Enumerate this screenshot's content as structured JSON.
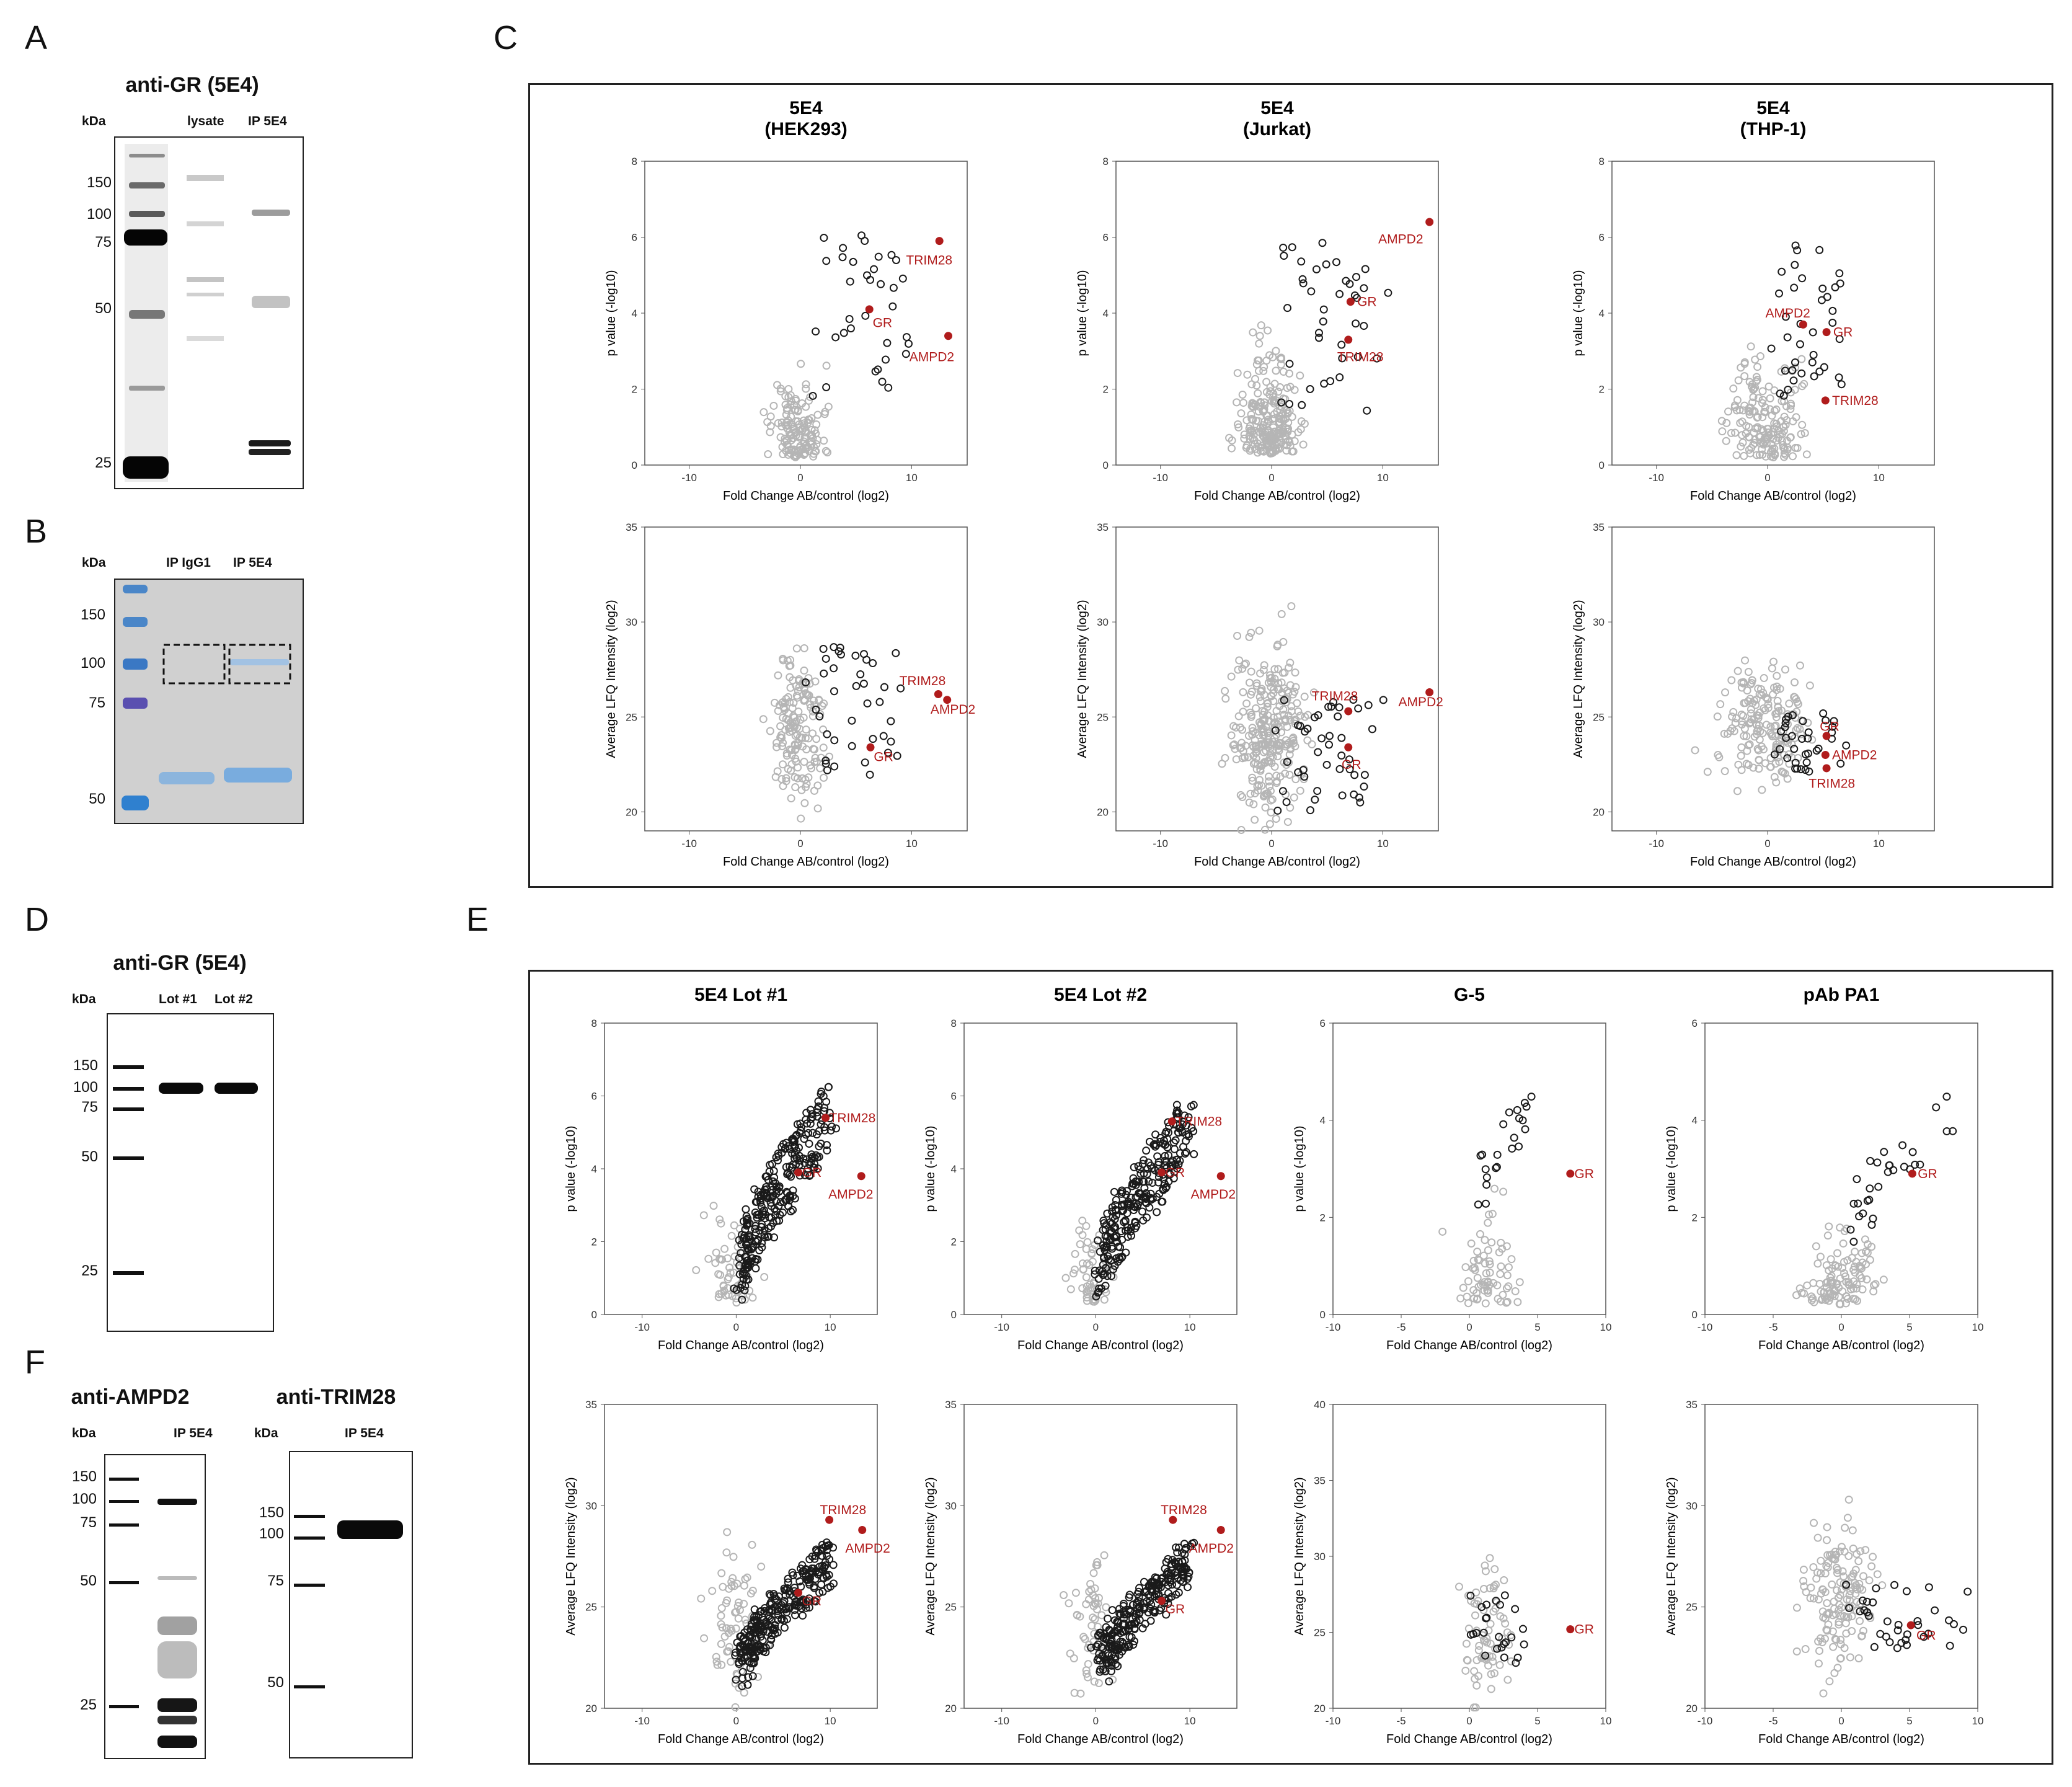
{
  "panels": {
    "A": {
      "letter": "A",
      "title": "anti-GR (5E4)",
      "unit": "kDa",
      "lanes": [
        "lysate",
        "IP 5E4"
      ],
      "markers": [
        "150",
        "100",
        "75",
        "50",
        "25"
      ]
    },
    "B": {
      "letter": "B",
      "unit": "kDa",
      "lanes": [
        "IP IgG1",
        "IP 5E4"
      ],
      "markers": [
        "150",
        "100",
        "75",
        "50"
      ]
    },
    "C": {
      "letter": "C"
    },
    "D": {
      "letter": "D",
      "title": "anti-GR (5E4)",
      "unit": "kDa",
      "lanes": [
        "Lot #1",
        "Lot #2"
      ],
      "markers": [
        "150",
        "100",
        "75",
        "50",
        "25"
      ]
    },
    "E": {
      "letter": "E"
    },
    "F": {
      "letter": "F",
      "left": {
        "title": "anti-AMPD2",
        "unit": "kDa",
        "lane": "IP 5E4",
        "markers": [
          "150",
          "100",
          "75",
          "50",
          "25"
        ]
      },
      "right": {
        "title": "anti-TRIM28",
        "unit": "kDa",
        "lane": "IP 5E4",
        "markers": [
          "150",
          "100",
          "75",
          "50"
        ]
      }
    }
  },
  "colors": {
    "highlight": "#b01c1c",
    "sig": "#1a1a1a",
    "nonsig": "#b5b5b5"
  },
  "chart_data": [
    {
      "id": "c-hek-vol",
      "type": "scatter",
      "title": [
        "5E4",
        "(HEK293)"
      ],
      "xlabel": "Fold Change AB/control (log2)",
      "ylabel": "p value (-log10)",
      "xlim": [
        -14,
        15
      ],
      "ylim": [
        0,
        8
      ],
      "xticks": [
        -10,
        0,
        10
      ],
      "yticks": [
        0,
        2,
        4,
        6,
        8
      ],
      "seed": 11,
      "cloud": {
        "n": 140,
        "nSig": 35,
        "xMean": -0.2,
        "xSd": 1.1,
        "yBase": 0.2,
        "yScale": 0.9,
        "sigX": [
          1,
          10
        ],
        "sigY": [
          1.6,
          6.2
        ]
      },
      "highlights": [
        {
          "label": "TRIM28",
          "x": 12.5,
          "y": 5.9,
          "lx": -3,
          "ly": -0.5
        },
        {
          "label": "GR",
          "x": 6.2,
          "y": 4.1,
          "lx": 0.3,
          "ly": -0.35
        },
        {
          "label": "AMPD2",
          "x": 13.3,
          "y": 3.4,
          "lx": -3.5,
          "ly": -0.55
        }
      ]
    },
    {
      "id": "c-jur-vol",
      "type": "scatter",
      "title": [
        "5E4",
        "(Jurkat)"
      ],
      "xlabel": "Fold Change AB/control (log2)",
      "ylabel": "p value (-log10)",
      "xlim": [
        -14,
        15
      ],
      "ylim": [
        0,
        8
      ],
      "xticks": [
        -10,
        0,
        10
      ],
      "yticks": [
        0,
        2,
        4,
        6,
        8
      ],
      "seed": 23,
      "cloud": {
        "n": 230,
        "nSig": 40,
        "xMean": -0.3,
        "xSd": 1.3,
        "yBase": 0.3,
        "yScale": 1.0,
        "sigX": [
          1,
          10
        ],
        "sigY": [
          1.2,
          5.9
        ]
      },
      "highlights": [
        {
          "label": "AMPD2",
          "x": 14.2,
          "y": 6.4,
          "lx": -4.6,
          "ly": -0.45
        },
        {
          "label": "GR",
          "x": 7.1,
          "y": 4.3,
          "lx": 0.6,
          "ly": 0
        },
        {
          "label": "TRIM28",
          "x": 6.9,
          "y": 3.3,
          "lx": -1,
          "ly": -0.45
        }
      ]
    },
    {
      "id": "c-thp-vol",
      "type": "scatter",
      "title": [
        "5E4",
        "(THP-1)"
      ],
      "xlabel": "Fold Change AB/control (log2)",
      "ylabel": "p value (-log10)",
      "xlim": [
        -14,
        15
      ],
      "ylim": [
        0,
        8
      ],
      "xticks": [
        -10,
        0,
        10
      ],
      "yticks": [
        0,
        2,
        4,
        6,
        8
      ],
      "seed": 37,
      "cloud": {
        "n": 170,
        "nSig": 38,
        "xMean": -0.3,
        "xSd": 1.6,
        "yBase": 0.2,
        "yScale": 1.0,
        "sigX": [
          1,
          7
        ],
        "sigY": [
          1.8,
          6.2
        ]
      },
      "highlights": [
        {
          "label": "AMPD2",
          "x": 3.2,
          "y": 3.7,
          "lx": -3.4,
          "ly": 0.3
        },
        {
          "label": "GR",
          "x": 5.3,
          "y": 3.5,
          "lx": 0.6,
          "ly": 0
        },
        {
          "label": "TRIM28",
          "x": 5.2,
          "y": 1.7,
          "lx": 0.6,
          "ly": 0
        }
      ]
    },
    {
      "id": "c-hek-int",
      "type": "scatter",
      "xlabel": "Fold Change AB/control (log2)",
      "ylabel": "Average LFQ Intensity (log2)",
      "xlim": [
        -14,
        15
      ],
      "ylim": [
        19,
        35
      ],
      "xticks": [
        -10,
        0,
        10
      ],
      "yticks": [
        20,
        25,
        30,
        35
      ],
      "seed": 51,
      "cloud": {
        "n": 160,
        "nSig": 40,
        "xMean": -0.3,
        "xSd": 1.2,
        "yMid": 24.3,
        "ySd": 2.0,
        "sigX": [
          1,
          9
        ],
        "sigY": [
          21.8,
          29
        ]
      },
      "highlights": [
        {
          "label": "TRIM28",
          "x": 12.4,
          "y": 26.2,
          "lx": -3.5,
          "ly": 0.7
        },
        {
          "label": "AMPD2",
          "x": 13.2,
          "y": 25.9,
          "lx": -1.5,
          "ly": -0.5
        },
        {
          "label": "GR",
          "x": 6.3,
          "y": 23.4,
          "lx": 0.3,
          "ly": -0.5
        }
      ]
    },
    {
      "id": "c-jur-int",
      "type": "scatter",
      "xlabel": "Fold Change AB/control (log2)",
      "ylabel": "Average LFQ Intensity (log2)",
      "xlim": [
        -14,
        15
      ],
      "ylim": [
        19,
        35
      ],
      "xticks": [
        -10,
        0,
        10
      ],
      "yticks": [
        20,
        25,
        30,
        35
      ],
      "seed": 63,
      "cloud": {
        "n": 280,
        "nSig": 45,
        "xMean": -0.3,
        "xSd": 1.5,
        "yMid": 24.2,
        "ySd": 2.2,
        "sigX": [
          1,
          10
        ],
        "sigY": [
          20,
          26
        ]
      },
      "highlights": [
        {
          "label": "TRIM28",
          "x": 6.9,
          "y": 25.3,
          "lx": -3.3,
          "ly": 0.8
        },
        {
          "label": "AMPD2",
          "x": 14.2,
          "y": 26.3,
          "lx": -2.8,
          "ly": -0.5
        },
        {
          "label": "GR",
          "x": 6.9,
          "y": 23.4,
          "lx": -0.6,
          "ly": -0.9
        }
      ]
    },
    {
      "id": "c-thp-int",
      "type": "scatter",
      "xlabel": "Fold Change AB/control (log2)",
      "ylabel": "Average LFQ Intensity (log2)",
      "xlim": [
        -14,
        15
      ],
      "ylim": [
        19,
        35
      ],
      "xticks": [
        -10,
        0,
        10
      ],
      "yticks": [
        20,
        25,
        30,
        35
      ],
      "seed": 79,
      "cloud": {
        "n": 180,
        "nSig": 35,
        "xMean": -0.3,
        "xSd": 2.0,
        "yMid": 24.8,
        "ySd": 1.5,
        "sigX": [
          1,
          7
        ],
        "sigY": [
          22,
          25.2
        ]
      },
      "highlights": [
        {
          "label": "GR",
          "x": 5.3,
          "y": 24.0,
          "lx": -0.6,
          "ly": 0.5
        },
        {
          "label": "AMPD2",
          "x": 5.2,
          "y": 23.0,
          "lx": 0.6,
          "ly": 0
        },
        {
          "label": "TRIM28",
          "x": 5.3,
          "y": 22.3,
          "lx": -1.6,
          "ly": -0.8
        }
      ]
    },
    {
      "id": "e-lot1-vol",
      "type": "scatter",
      "title": [
        "5E4 Lot #1"
      ],
      "xlabel": "Fold Change AB/control (log2)",
      "ylabel": "p value (-log10)",
      "xlim": [
        -14,
        15
      ],
      "ylim": [
        0,
        8
      ],
      "xticks": [
        -10,
        0,
        10
      ],
      "yticks": [
        0,
        2,
        4,
        6,
        8
      ],
      "seed": 91,
      "cloud": {
        "n": 60,
        "nSig": 280,
        "xMean": -0.5,
        "xSd": 1.2,
        "yBase": 0.3,
        "yScale": 1.0,
        "sigX": [
          0.5,
          10
        ],
        "sigY": [
          0.3,
          6.6
        ],
        "corr": true
      },
      "highlights": [
        {
          "label": "TRIM28",
          "x": 9.5,
          "y": 5.4,
          "lx": 0.4,
          "ly": 0
        },
        {
          "label": "GR",
          "x": 6.6,
          "y": 3.9,
          "lx": 0.4,
          "ly": 0
        },
        {
          "label": "AMPD2",
          "x": 13.3,
          "y": 3.8,
          "lx": -3.5,
          "ly": -0.5
        }
      ]
    },
    {
      "id": "e-lot2-vol",
      "type": "scatter",
      "title": [
        "5E4 Lot #2"
      ],
      "xlabel": "Fold Change AB/control (log2)",
      "ylabel": "p value (-log10)",
      "xlim": [
        -14,
        15
      ],
      "ylim": [
        0,
        8
      ],
      "xticks": [
        -10,
        0,
        10
      ],
      "yticks": [
        0,
        2,
        4,
        6,
        8
      ],
      "seed": 103,
      "cloud": {
        "n": 50,
        "nSig": 260,
        "xMean": -0.5,
        "xSd": 1.0,
        "yBase": 0.3,
        "yScale": 0.9,
        "sigX": [
          0.5,
          10
        ],
        "sigY": [
          0.3,
          6.1
        ],
        "corr": true
      },
      "highlights": [
        {
          "label": "TRIM28",
          "x": 8.1,
          "y": 5.3,
          "lx": 0.4,
          "ly": 0
        },
        {
          "label": "GR",
          "x": 7.0,
          "y": 3.9,
          "lx": 0.4,
          "ly": 0
        },
        {
          "label": "AMPD2",
          "x": 13.3,
          "y": 3.8,
          "lx": -3.2,
          "ly": -0.5
        }
      ]
    },
    {
      "id": "e-g5-vol",
      "type": "scatter",
      "title": [
        "G-5"
      ],
      "xlabel": "Fold Change AB/control (log2)",
      "ylabel": "p value (-log10)",
      "xlim": [
        -10,
        10
      ],
      "ylim": [
        0,
        6
      ],
      "xticks": [
        -10,
        -5,
        0,
        5,
        10
      ],
      "yticks": [
        0,
        2,
        4,
        6
      ],
      "seed": 117,
      "cloud": {
        "n": 70,
        "nSig": 22,
        "xMean": 1.5,
        "xSd": 1.1,
        "yBase": 0.2,
        "yScale": 0.7,
        "sigX": [
          0.5,
          4.5
        ],
        "sigY": [
          1.8,
          5.0
        ],
        "corr": true
      },
      "highlights": [
        {
          "label": "GR",
          "x": 7.4,
          "y": 2.9,
          "lx": 0.3,
          "ly": 0
        }
      ]
    },
    {
      "id": "e-pa1-vol",
      "type": "scatter",
      "title": [
        "pAb PA1"
      ],
      "xlabel": "Fold Change AB/control (log2)",
      "ylabel": "p value (-log10)",
      "xlim": [
        -10,
        10
      ],
      "ylim": [
        0,
        6
      ],
      "xticks": [
        -10,
        -5,
        0,
        5,
        10
      ],
      "yticks": [
        0,
        2,
        4,
        6
      ],
      "seed": 131,
      "cloud": {
        "n": 110,
        "nSig": 30,
        "xMean": -0.2,
        "xSd": 1.4,
        "yBase": 0.2,
        "yScale": 0.6,
        "sigX": [
          1,
          9
        ],
        "sigY": [
          1.4,
          5.0
        ],
        "corr": true
      },
      "highlights": [
        {
          "label": "GR",
          "x": 5.2,
          "y": 2.9,
          "lx": 0.4,
          "ly": 0
        }
      ]
    },
    {
      "id": "e-lot1-int",
      "type": "scatter",
      "xlabel": "Fold Change AB/control (log2)",
      "ylabel": "Average LFQ Intensity (log2)",
      "xlim": [
        -14,
        15
      ],
      "ylim": [
        20,
        35
      ],
      "xticks": [
        -10,
        0,
        10
      ],
      "yticks": [
        20,
        25,
        30,
        35
      ],
      "seed": 149,
      "cloud": {
        "n": 70,
        "nSig": 280,
        "xMean": -0.3,
        "xSd": 1.3,
        "yMid": 24.0,
        "ySd": 1.8,
        "sigX": [
          0.5,
          10
        ],
        "sigY": [
          21,
          28.5
        ],
        "corr": true
      },
      "highlights": [
        {
          "label": "TRIM28",
          "x": 9.9,
          "y": 29.3,
          "lx": -1,
          "ly": 0.5
        },
        {
          "label": "AMPD2",
          "x": 13.4,
          "y": 28.8,
          "lx": -1.8,
          "ly": -0.9
        },
        {
          "label": "GR",
          "x": 6.6,
          "y": 25.7,
          "lx": 0.4,
          "ly": -0.4
        }
      ]
    },
    {
      "id": "e-lot2-int",
      "type": "scatter",
      "xlabel": "Fold Change AB/control (log2)",
      "ylabel": "Average LFQ Intensity (log2)",
      "xlim": [
        -14,
        15
      ],
      "ylim": [
        20,
        35
      ],
      "xticks": [
        -10,
        0,
        10
      ],
      "yticks": [
        20,
        25,
        30,
        35
      ],
      "seed": 163,
      "cloud": {
        "n": 60,
        "nSig": 270,
        "xMean": -0.3,
        "xSd": 1.1,
        "yMid": 24.0,
        "ySd": 1.6,
        "sigX": [
          0.5,
          10
        ],
        "sigY": [
          21,
          28.5
        ],
        "corr": true
      },
      "highlights": [
        {
          "label": "TRIM28",
          "x": 8.2,
          "y": 29.3,
          "lx": -1.3,
          "ly": 0.5
        },
        {
          "label": "AMPD2",
          "x": 13.3,
          "y": 28.8,
          "lx": -3.4,
          "ly": -0.9
        },
        {
          "label": "GR",
          "x": 7.0,
          "y": 25.3,
          "lx": 0.4,
          "ly": -0.4
        }
      ]
    },
    {
      "id": "e-g5-int",
      "type": "scatter",
      "xlabel": "Fold Change AB/control (log2)",
      "ylabel": "Average LFQ Intensity (log2)",
      "xlim": [
        -10,
        10
      ],
      "ylim": [
        20,
        40
      ],
      "xticks": [
        -10,
        -5,
        0,
        5,
        10
      ],
      "yticks": [
        20,
        25,
        30,
        35,
        40
      ],
      "seed": 177,
      "cloud": {
        "n": 70,
        "nSig": 25,
        "xMean": 1.2,
        "xSd": 1.0,
        "yMid": 25.0,
        "ySd": 2.0,
        "sigX": [
          0.5,
          4.5
        ],
        "sigY": [
          22.2,
          28
        ],
        "corr": false
      },
      "highlights": [
        {
          "label": "GR",
          "x": 7.4,
          "y": 25.2,
          "lx": 0.3,
          "ly": 0
        }
      ]
    },
    {
      "id": "e-pa1-int",
      "type": "scatter",
      "xlabel": "Fold Change AB/control (log2)",
      "ylabel": "Average LFQ Intensity (log2)",
      "xlim": [
        -10,
        10
      ],
      "ylim": [
        20,
        35
      ],
      "xticks": [
        -10,
        -5,
        0,
        5,
        10
      ],
      "yticks": [
        20,
        25,
        30,
        35
      ],
      "seed": 191,
      "cloud": {
        "n": 150,
        "nSig": 35,
        "xMean": -0.2,
        "xSd": 1.2,
        "yMid": 25.5,
        "ySd": 1.7,
        "sigX": [
          1,
          9
        ],
        "sigY": [
          22.8,
          26.2
        ],
        "corr": false
      },
      "highlights": [
        {
          "label": "GR",
          "x": 5.1,
          "y": 24.1,
          "lx": 0.4,
          "ly": -0.5
        }
      ]
    }
  ]
}
